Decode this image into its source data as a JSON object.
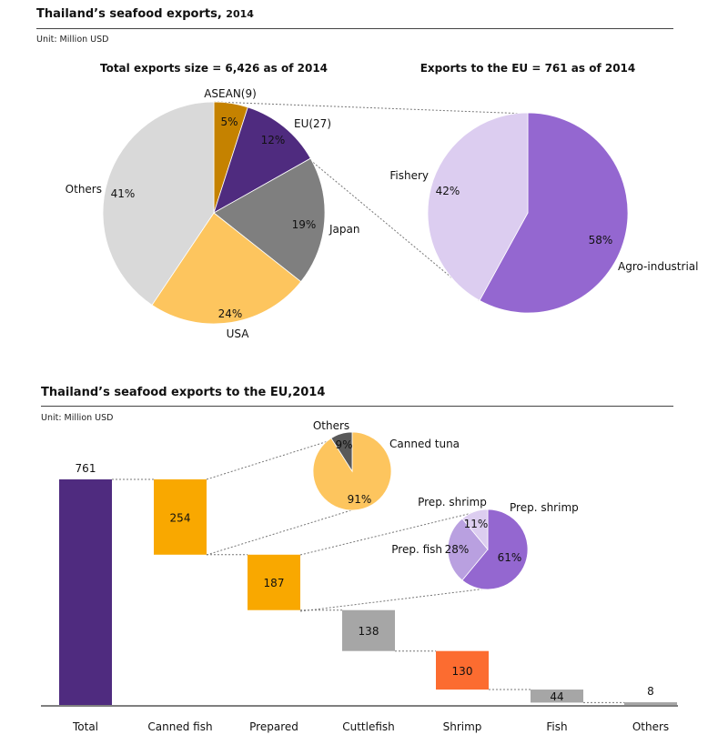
{
  "header": {
    "title_main": "Thailand’s seafood exports,",
    "title_year": "2014",
    "unit": "Unit: Million USD"
  },
  "bottom_header": {
    "title": "Thailand’s seafood exports to the EU,2014",
    "unit": "Unit: Million USD"
  },
  "chart_data": [
    {
      "type": "pie",
      "title": "Total exports size = 6,426 as of 2014",
      "slices": [
        {
          "label": "ASEAN(9)",
          "pct_label": "5%",
          "value": 5,
          "color": "#c58200"
        },
        {
          "label": "EU(27)",
          "pct_label": "12%",
          "value": 12,
          "color": "#4f2b7f"
        },
        {
          "label": "Japan",
          "pct_label": "19%",
          "value": 19,
          "color": "#7f7f7f"
        },
        {
          "label": "USA",
          "pct_label": "24%",
          "value": 24,
          "color": "#fdc55e"
        },
        {
          "label": "Others",
          "pct_label": "41%",
          "value": 41,
          "color": "#d9d9d9"
        }
      ]
    },
    {
      "type": "pie",
      "title": "Exports to the EU = 761 as of 2014",
      "slices": [
        {
          "label": "Agro-industrial",
          "pct_label": "58%",
          "value": 58,
          "color": "#9467d0"
        },
        {
          "label": "Fishery",
          "pct_label": "42%",
          "value": 42,
          "color": "#dccdf0"
        }
      ]
    },
    {
      "type": "bar",
      "subtype": "waterfall",
      "categories": [
        "Total",
        "Canned fish",
        "Prepared",
        "Cuttlefish",
        "Shrimp",
        "Fish",
        "Others"
      ],
      "values": [
        761,
        254,
        187,
        138,
        130,
        44,
        8
      ],
      "value_labels": [
        "761",
        "254",
        "187",
        "138",
        "130",
        "44",
        "8"
      ],
      "colors": [
        "#4f2b7f",
        "#f9a800",
        "#f9a800",
        "#a6a6a6",
        "#fc6c30",
        "#a6a6a6",
        "#a6a6a6"
      ],
      "ylim": [
        0,
        761
      ]
    },
    {
      "type": "pie",
      "slices": [
        {
          "label": "Canned tuna",
          "pct_label": "91%",
          "value": 91,
          "color": "#fdc55e"
        },
        {
          "label": "Others",
          "pct_label": "9%",
          "value": 9,
          "color": "#595959"
        }
      ]
    },
    {
      "type": "pie",
      "slices": [
        {
          "label": "Prep. shrimp",
          "pct_label": "61%",
          "value": 61,
          "color": "#9467d0"
        },
        {
          "label": "Prep. fish",
          "pct_label": "28%",
          "value": 28,
          "color": "#b9a0e0"
        },
        {
          "label": "Prep. shrimp",
          "pct_label": "11%",
          "value": 11,
          "color": "#dccdf0"
        }
      ]
    }
  ]
}
